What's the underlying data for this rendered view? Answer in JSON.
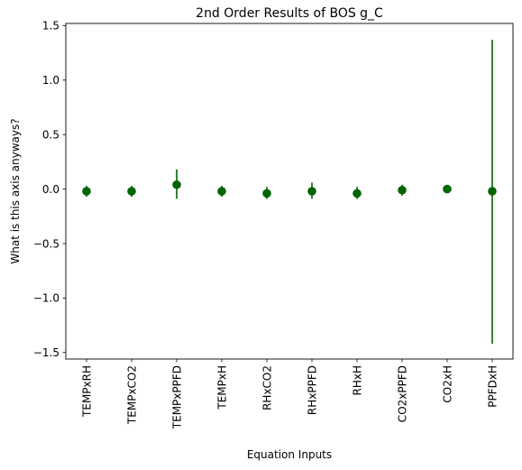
{
  "chart_data": {
    "type": "scatter",
    "title": "2nd Order Results of BOS g_C",
    "xlabel": "Equation Inputs",
    "ylabel": "What is this axis anyways?",
    "categories": [
      "TEMPxRH",
      "TEMPxCO2",
      "TEMPxPPFD",
      "TEMPxH",
      "RHxCO2",
      "RHxPPFD",
      "RHxH",
      "CO2xPPFD",
      "CO2xH",
      "PPFDxH"
    ],
    "values": [
      -0.02,
      -0.02,
      0.04,
      -0.02,
      -0.04,
      -0.02,
      -0.04,
      -0.01,
      0.0,
      -0.02
    ],
    "error_low": [
      -0.07,
      -0.07,
      -0.09,
      -0.07,
      -0.09,
      -0.09,
      -0.09,
      -0.06,
      -0.02,
      -1.42
    ],
    "error_high": [
      0.03,
      0.03,
      0.18,
      0.03,
      0.02,
      0.06,
      0.02,
      0.04,
      0.02,
      1.37
    ],
    "yticks": [
      "1.5",
      "1.0",
      "0.5",
      "0.0",
      "−0.5",
      "−1.0",
      "−1.5"
    ],
    "ytick_values": [
      1.5,
      1.0,
      0.5,
      0.0,
      -0.5,
      -1.0,
      -1.5
    ],
    "ylim": [
      -1.56,
      1.52
    ],
    "color": "#006400",
    "grid": false,
    "legend": "none"
  }
}
